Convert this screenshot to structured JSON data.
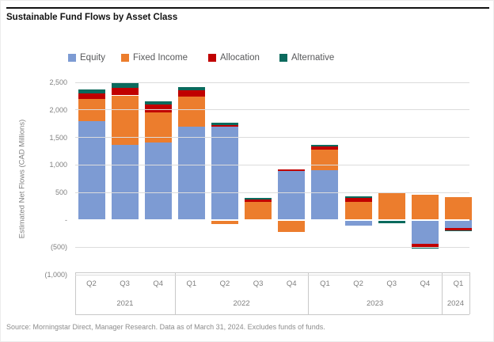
{
  "title": "Sustainable Fund Flows by Asset Class",
  "source": "Source: Morningstar Direct, Manager Research. Data as of March 31, 2024. Excludes funds of funds.",
  "chart_data": {
    "type": "bar",
    "stacked": true,
    "ylabel": "Estimated Net Flows (CAD Millions)",
    "ylim": [
      -1000,
      2500
    ],
    "grid": true,
    "legend_position": "top",
    "yticks": [
      {
        "label": "2,500",
        "value": 2500
      },
      {
        "label": "2,000",
        "value": 2000
      },
      {
        "label": "1,500",
        "value": 1500
      },
      {
        "label": "1,000",
        "value": 1000
      },
      {
        "label": "500",
        "value": 500
      },
      {
        "label": "-",
        "value": 0
      },
      {
        "label": "(500)",
        "value": -500
      },
      {
        "label": "(1,000)",
        "value": -1000
      }
    ],
    "categories": [
      "Q2",
      "Q3",
      "Q4",
      "Q1",
      "Q2",
      "Q3",
      "Q4",
      "Q1",
      "Q2",
      "Q3",
      "Q4",
      "Q1"
    ],
    "year_groups": [
      {
        "year": "2021",
        "start": 0,
        "count": 3
      },
      {
        "year": "2022",
        "start": 3,
        "count": 4
      },
      {
        "year": "2023",
        "start": 7,
        "count": 4
      },
      {
        "year": "2024",
        "start": 11,
        "count": 1
      }
    ],
    "series": [
      {
        "name": "Equity",
        "color": "#7d9bd3",
        "values": [
          1790,
          1370,
          1405,
          1690,
          1690,
          0,
          895,
          905,
          -110,
          0,
          -430,
          -155
        ]
      },
      {
        "name": "Fixed Income",
        "color": "#ec7d2d",
        "values": [
          415,
          895,
          555,
          555,
          -70,
          320,
          -215,
          370,
          320,
          490,
          455,
          415
        ]
      },
      {
        "name": "Allocation",
        "color": "#c00000",
        "values": [
          95,
          140,
          140,
          110,
          40,
          50,
          25,
          60,
          80,
          0,
          -60,
          -30
        ]
      },
      {
        "name": "Alternative",
        "color": "#0b6a5d",
        "values": [
          75,
          80,
          50,
          60,
          40,
          35,
          0,
          25,
          25,
          -55,
          -30,
          -25
        ]
      }
    ]
  }
}
